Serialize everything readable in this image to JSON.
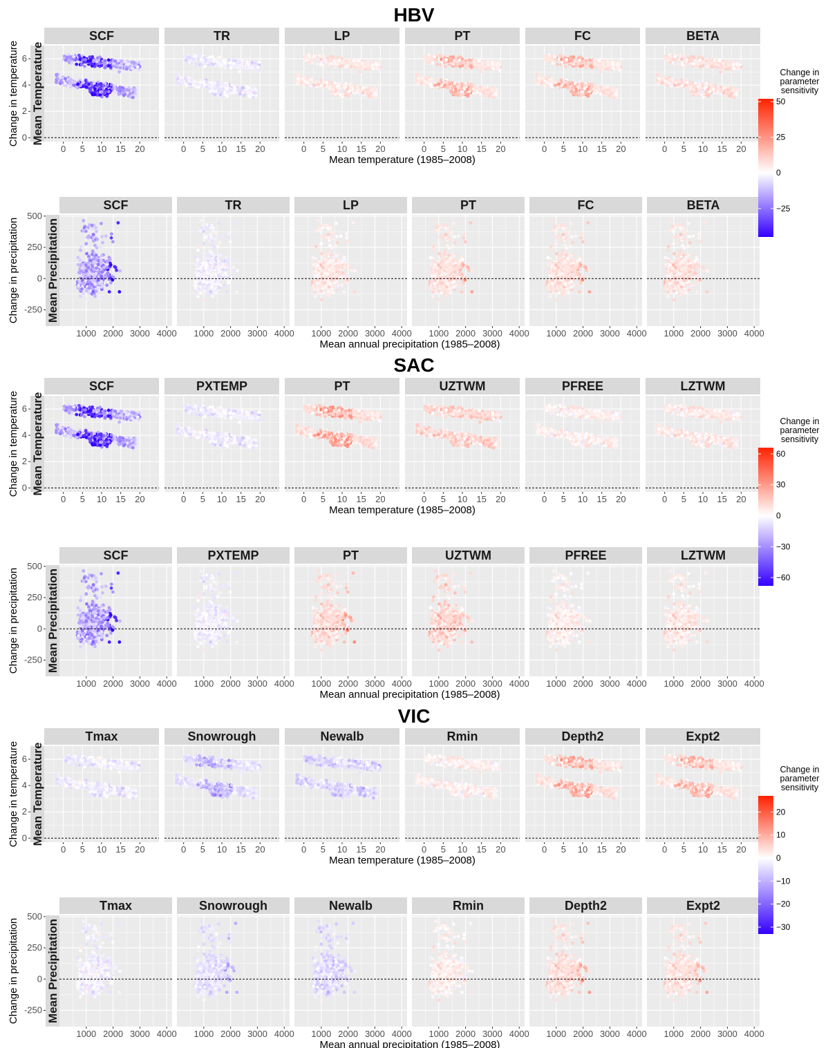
{
  "chart_data": [
    {
      "model": "HBV",
      "type": "scatter",
      "params": [
        "SCF",
        "TR",
        "LP",
        "PT",
        "FC",
        "BETA"
      ],
      "param_effects": [
        -1.0,
        -0.1,
        0.15,
        0.35,
        0.35,
        0.2
      ],
      "legend": {
        "title": [
          "Change in",
          "parameter",
          "sensitivity"
        ],
        "ticks": [
          50,
          25,
          0,
          -25
        ],
        "range": [
          -45,
          52
        ]
      },
      "temperature_row": {
        "row_label": "Mean Temperature",
        "ylabel": "Change in temperature",
        "xlabel": "Mean temperature (1985–2008)",
        "xticks": [
          "0",
          "5",
          "10",
          "15",
          "20"
        ],
        "yticks": [
          "0",
          "2",
          "4",
          "6"
        ]
      },
      "precipitation_row": {
        "row_label": "Mean Precipitation",
        "ylabel": "Change in precipitation",
        "xlabel": "Mean annual precipitation (1985–2008)",
        "xticks": [
          "1000",
          "2000",
          "3000",
          "4000"
        ],
        "yticks": [
          "-250",
          "0",
          "250",
          "500"
        ]
      }
    },
    {
      "model": "SAC",
      "type": "scatter",
      "params": [
        "SCF",
        "PXTEMP",
        "PT",
        "UZTWM",
        "PFREE",
        "LZTWM"
      ],
      "param_effects": [
        -1.0,
        -0.1,
        0.45,
        0.3,
        0.1,
        0.15
      ],
      "legend": {
        "title": [
          "Change in",
          "parameter",
          "sensitivity"
        ],
        "ticks": [
          60,
          30,
          0,
          -30,
          -60
        ],
        "range": [
          -68,
          66
        ]
      },
      "temperature_row": {
        "row_label": "Mean Temperature",
        "ylabel": "Change in temperature",
        "xlabel": "Mean temperature (1985–2008)",
        "xticks": [
          "0",
          "5",
          "10",
          "15",
          "20"
        ],
        "yticks": [
          "0",
          "2",
          "4",
          "6"
        ]
      },
      "precipitation_row": {
        "row_label": "Mean Precipitation",
        "ylabel": "Change in precipitation",
        "xlabel": "Mean annual precipitation (1985–2008)",
        "xticks": [
          "1000",
          "2000",
          "3000",
          "4000"
        ],
        "yticks": [
          "-250",
          "0",
          "250",
          "500"
        ]
      }
    },
    {
      "model": "VIC",
      "type": "scatter",
      "params": [
        "Tmax",
        "Snowrough",
        "Newalb",
        "Rmin",
        "Depth2",
        "Expt2"
      ],
      "param_effects": [
        -0.1,
        -0.35,
        -0.25,
        0.1,
        0.4,
        0.35
      ],
      "legend": {
        "title": [
          "Change in",
          "parameter",
          "sensitivity"
        ],
        "ticks": [
          20,
          10,
          0,
          -10,
          -20,
          -30
        ],
        "range": [
          -33,
          27
        ]
      },
      "temperature_row": {
        "row_label": "Mean Temperature",
        "ylabel": "Change in temperature",
        "xlabel": "Mean temperature (1985–2008)",
        "xticks": [
          "0",
          "5",
          "10",
          "15",
          "20"
        ],
        "yticks": [
          "0",
          "2",
          "4",
          "6"
        ]
      },
      "precipitation_row": {
        "row_label": "Mean Precipitation",
        "ylabel": "Change in precipitation",
        "xlabel": "Mean annual precipitation (1985–2008)",
        "xticks": [
          "1000",
          "2000",
          "3000",
          "4000"
        ],
        "yticks": [
          "-250",
          "0",
          "250",
          "500"
        ]
      }
    }
  ],
  "axes": {
    "temperature": {
      "xlim": [
        -5,
        25
      ],
      "ylim": [
        -0.3,
        7
      ],
      "xtick_values": [
        0,
        5,
        10,
        15,
        20
      ],
      "ytick_values": [
        0,
        2,
        4,
        6
      ]
    },
    "precipitation": {
      "xlim": [
        0,
        4200
      ],
      "ylim": [
        -380,
        510
      ],
      "xtick_values": [
        1000,
        2000,
        3000,
        4000
      ],
      "ytick_values": [
        -250,
        0,
        250,
        500
      ]
    }
  },
  "colors": {
    "panel_bg": "#ebebeb",
    "grid": "#ffffff",
    "strip_bg": "#d9d9d9",
    "low": "#3300ff",
    "mid": "#ffffff",
    "high": "#ff2200",
    "zero_line": "#000000"
  }
}
